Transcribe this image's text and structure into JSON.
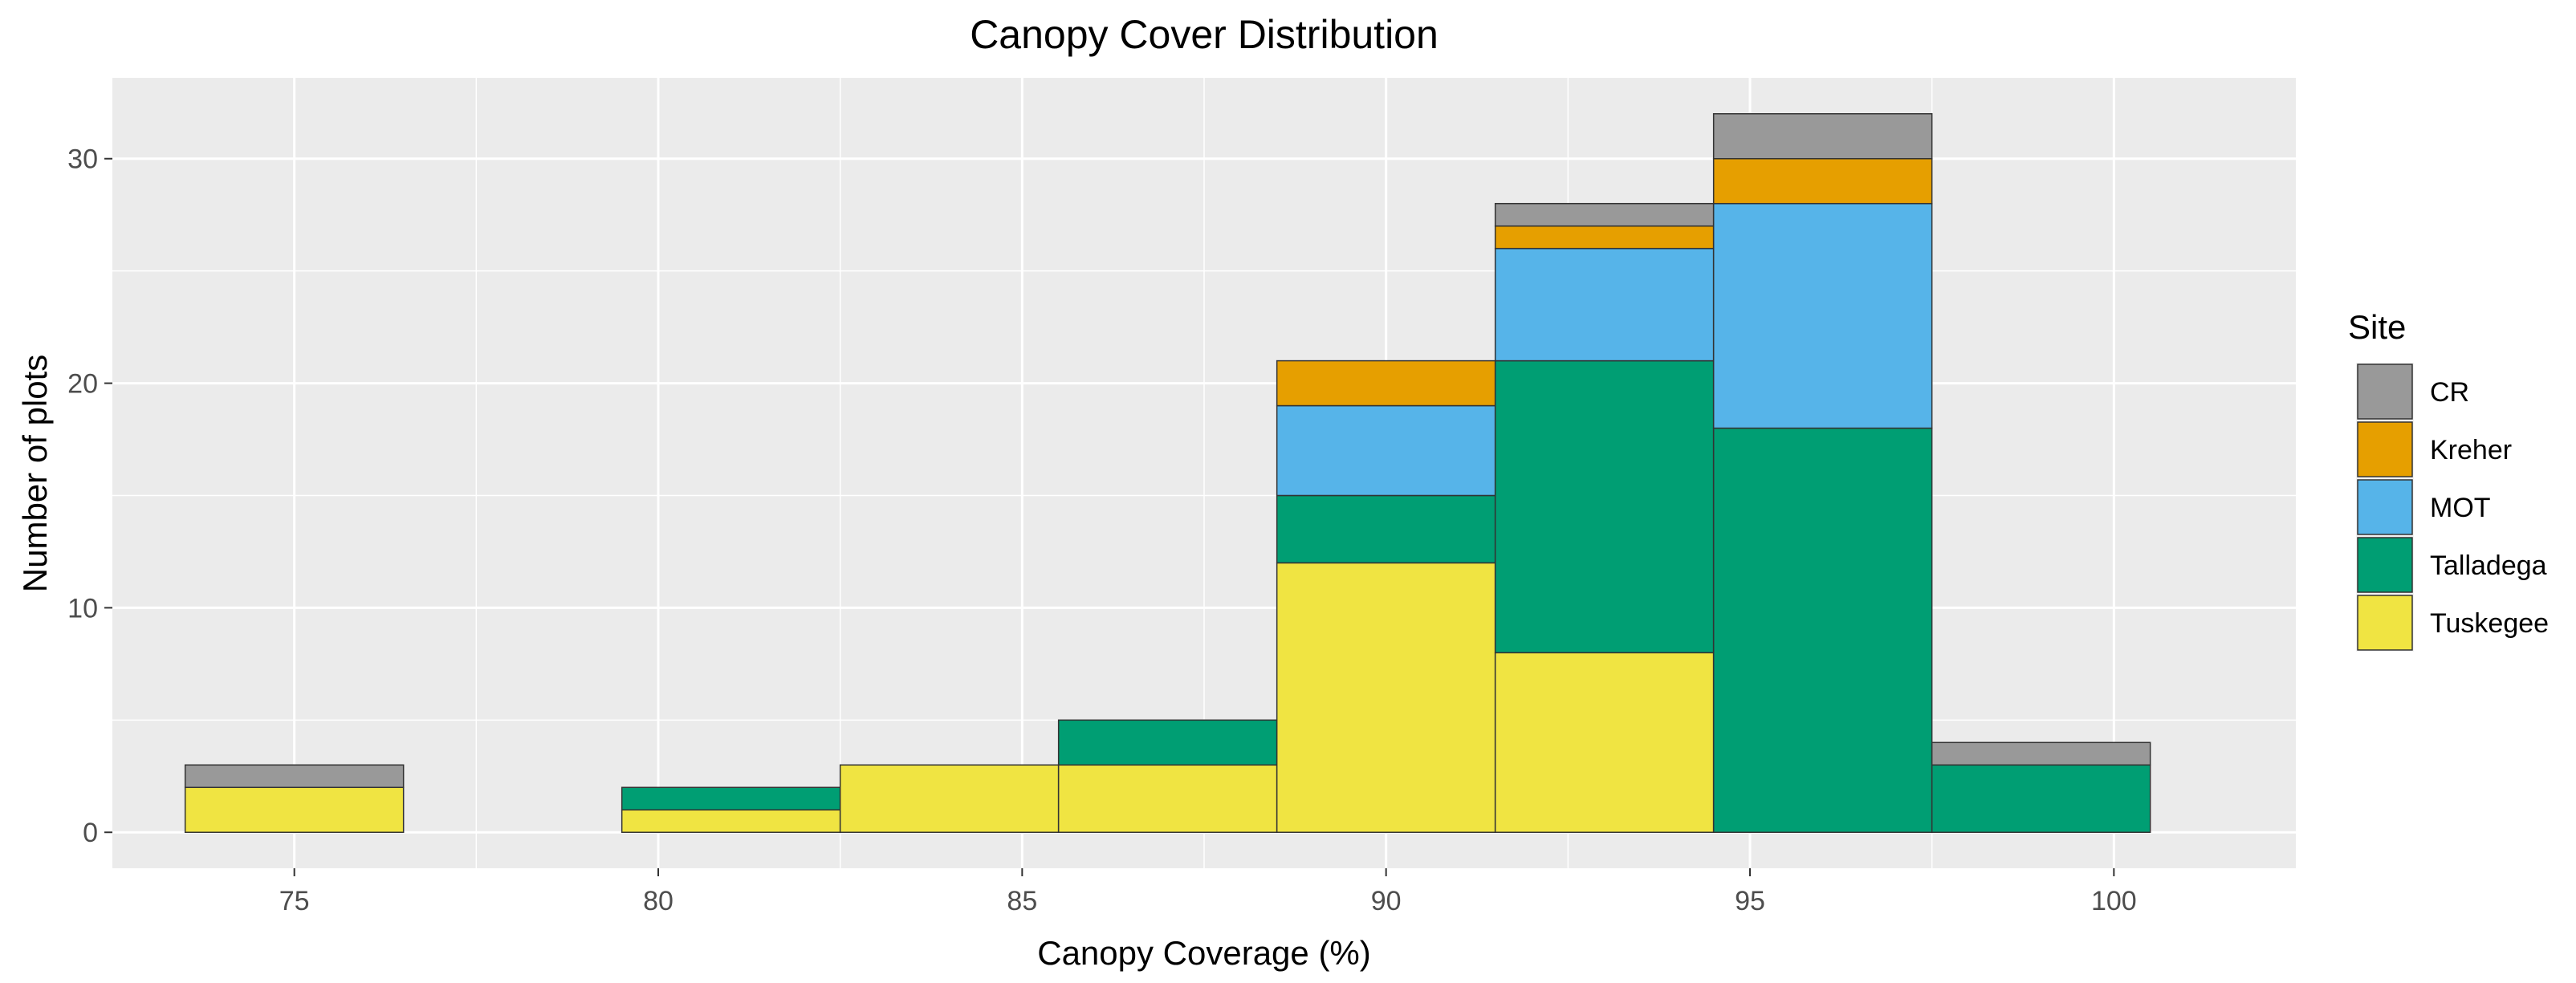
{
  "chart_data": {
    "type": "bar",
    "subtype": "stacked-histogram",
    "title": "Canopy Cover Distribution",
    "xlabel": "Canopy Coverage (%)",
    "ylabel": "Number of plots",
    "xlim": [
      72.5,
      102.5
    ],
    "ylim": [
      -1.6,
      33.6
    ],
    "xticks": [
      75,
      80,
      85,
      90,
      95,
      100
    ],
    "yticks": [
      0,
      10,
      20,
      30
    ],
    "grid": true,
    "bin_width": 3,
    "bin_centers": [
      75,
      78,
      81,
      84,
      87,
      90,
      93,
      96,
      99
    ],
    "legend": {
      "title": "Site",
      "position": "right"
    },
    "series": [
      {
        "name": "Tuskegee",
        "color": "#F0E442",
        "values": [
          2,
          0,
          1,
          3,
          3,
          12,
          8,
          0,
          0
        ]
      },
      {
        "name": "Talladega",
        "color": "#009E73",
        "values": [
          0,
          0,
          1,
          0,
          2,
          3,
          13,
          18,
          3
        ]
      },
      {
        "name": "MOT",
        "color": "#56B4E9",
        "values": [
          0,
          0,
          0,
          0,
          0,
          4,
          5,
          10,
          0
        ]
      },
      {
        "name": "Kreher",
        "color": "#E69F00",
        "values": [
          0,
          0,
          0,
          0,
          0,
          2,
          1,
          2,
          0
        ]
      },
      {
        "name": "CR",
        "color": "#999999",
        "values": [
          1,
          0,
          0,
          0,
          0,
          0,
          1,
          2,
          1
        ]
      }
    ],
    "legend_order": [
      "CR",
      "Kreher",
      "MOT",
      "Talladega",
      "Tuskegee"
    ]
  }
}
